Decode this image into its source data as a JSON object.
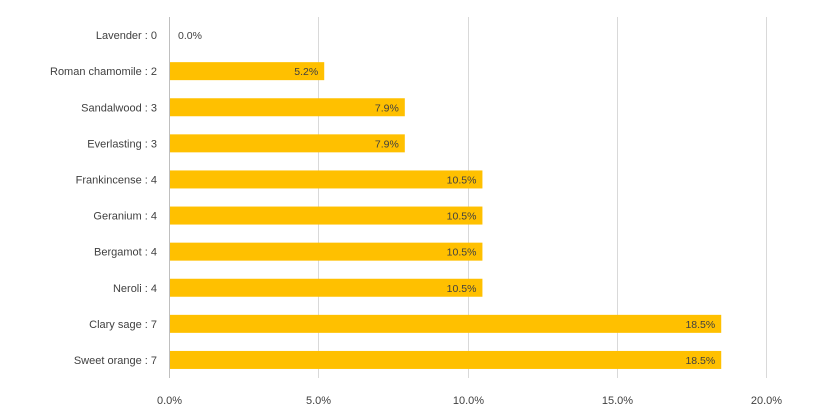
{
  "chart_data": {
    "type": "bar",
    "orientation": "horizontal",
    "categories": [
      "Lavender : 0",
      "Roman chamomile : 2",
      "Sandalwood : 3",
      "Everlasting : 3",
      "Frankincense : 4",
      "Geranium : 4",
      "Bergamot : 4",
      "Neroli : 4",
      "Clary sage : 7",
      "Sweet orange : 7"
    ],
    "values": [
      0.0,
      5.2,
      7.9,
      7.9,
      10.5,
      10.5,
      10.5,
      10.5,
      18.5,
      18.5
    ],
    "data_labels": [
      "0.0%",
      "5.2%",
      "7.9%",
      "7.9%",
      "10.5%",
      "10.5%",
      "10.5%",
      "10.5%",
      "18.5%",
      "18.5%"
    ],
    "x_ticks": [
      "0.0%",
      "5.0%",
      "10.0%",
      "15.0%",
      "20.0%"
    ],
    "xlim": [
      0,
      20
    ],
    "bar_color": "#FFC000",
    "grid": true,
    "legend": false
  }
}
